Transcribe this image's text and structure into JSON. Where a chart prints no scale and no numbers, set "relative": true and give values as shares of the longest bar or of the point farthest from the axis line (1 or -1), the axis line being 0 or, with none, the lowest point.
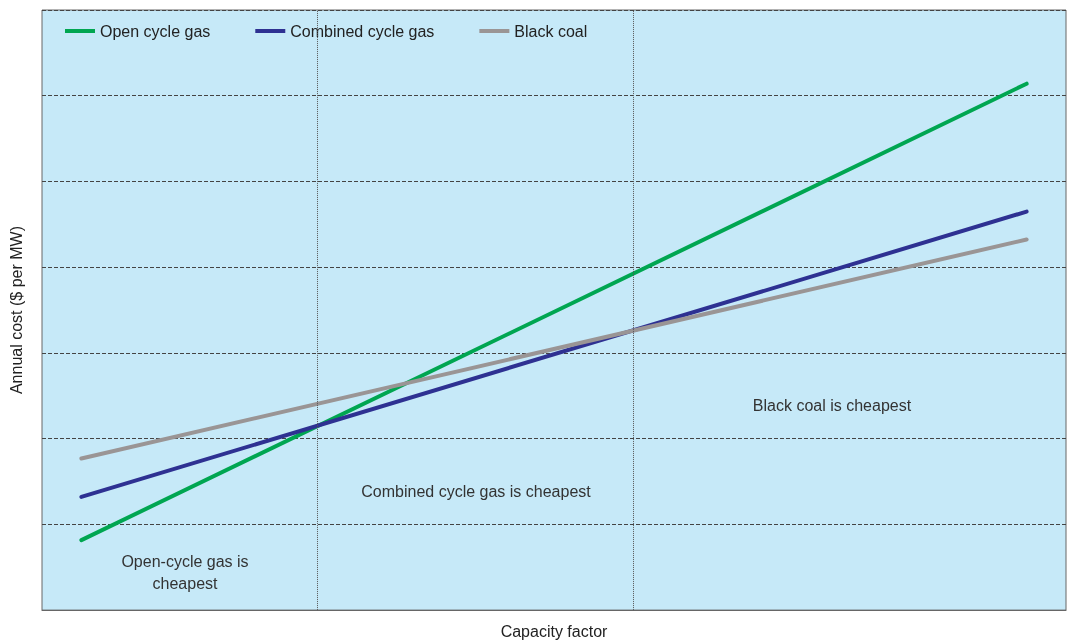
{
  "chart_data": {
    "type": "line",
    "xlabel": "Capacity factor",
    "ylabel": "Annual cost ($ per MW)",
    "relative": true,
    "categories": [
      null,
      null,
      null,
      null,
      null,
      null,
      null,
      null,
      null,
      null,
      null,
      null,
      null
    ],
    "series": [
      {
        "name": "Open cycle gas",
        "color": "#00a651",
        "values": [
          0.133,
          null,
          null,
          null,
          null,
          null,
          null,
          null,
          null,
          null,
          null,
          null,
          1
        ]
      },
      {
        "name": "Combined cycle gas",
        "color": "#2e3192",
        "values": [
          0.215,
          null,
          null,
          null,
          null,
          null,
          null,
          null,
          null,
          null,
          null,
          null,
          0.757
        ]
      },
      {
        "name": "Black coal",
        "color": "#9a9595",
        "values": [
          0.288,
          null,
          null,
          null,
          null,
          null,
          null,
          null,
          null,
          null,
          null,
          null,
          0.704
        ]
      }
    ],
    "annotations": [
      "Open-cycle gas is\ncheapest",
      "Combined cycle gas is cheapest",
      "Black coal is cheapest"
    ],
    "grid": "y",
    "legend": "top left",
    "marker": "none",
    "line_style": "solid"
  }
}
